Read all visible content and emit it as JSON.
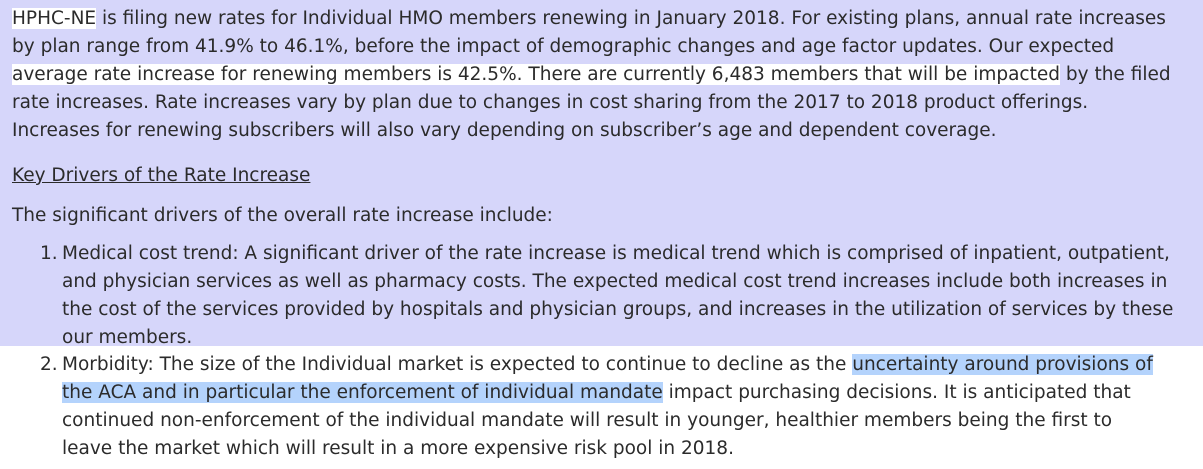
{
  "paragraph": {
    "l1_a": "HPHC-NE",
    "l1_b": " is filing new rates for Individual HMO members renewing in January 2018. For existing plans, annual rate increases",
    "l2": "by plan range from 41.9% to 46.1%, before the impact of demographic changes and age factor updates. Our expected",
    "l3_a": "average rate increase for renewing members is 42.5%. There are currently 6,483 members that will be impacted",
    "l3_b": " by the filed",
    "l4": "rate increases. Rate increases vary by plan due to changes in cost sharing from the 2017 to 2018 product offerings.",
    "l5": "Increases for renewing subscribers will also vary depending on subscriber’s age and dependent coverage."
  },
  "heading": "Key Drivers of the Rate Increase",
  "intro": "The significant drivers of the overall rate increase include:",
  "items": [
    {
      "number": "1.",
      "lines": [
        "Medical cost trend: A significant driver of the rate increase is medical trend which is comprised of inpatient, outpatient,",
        "and physician services as well as pharmacy costs. The expected medical cost trend increases include both increases in",
        "the cost of the services provided by hospitals and physician groups, and increases in the utilization of services by these",
        "our members."
      ]
    },
    {
      "number": "2.",
      "l1_a": "Morbidity: The size of the Individual market is expected to continue to decline as the ",
      "l1_b": "uncertainty around provisions of",
      "l2_a": "the ACA and in particular the enforcement of individual mandate",
      "l2_b": " impact purchasing decisions. It is anticipated that",
      "l3": "continued non-enforcement of the individual mandate will result in younger, healthier members being the first to",
      "l4": "leave the market which will result in a more expensive risk pool in 2018."
    }
  ]
}
